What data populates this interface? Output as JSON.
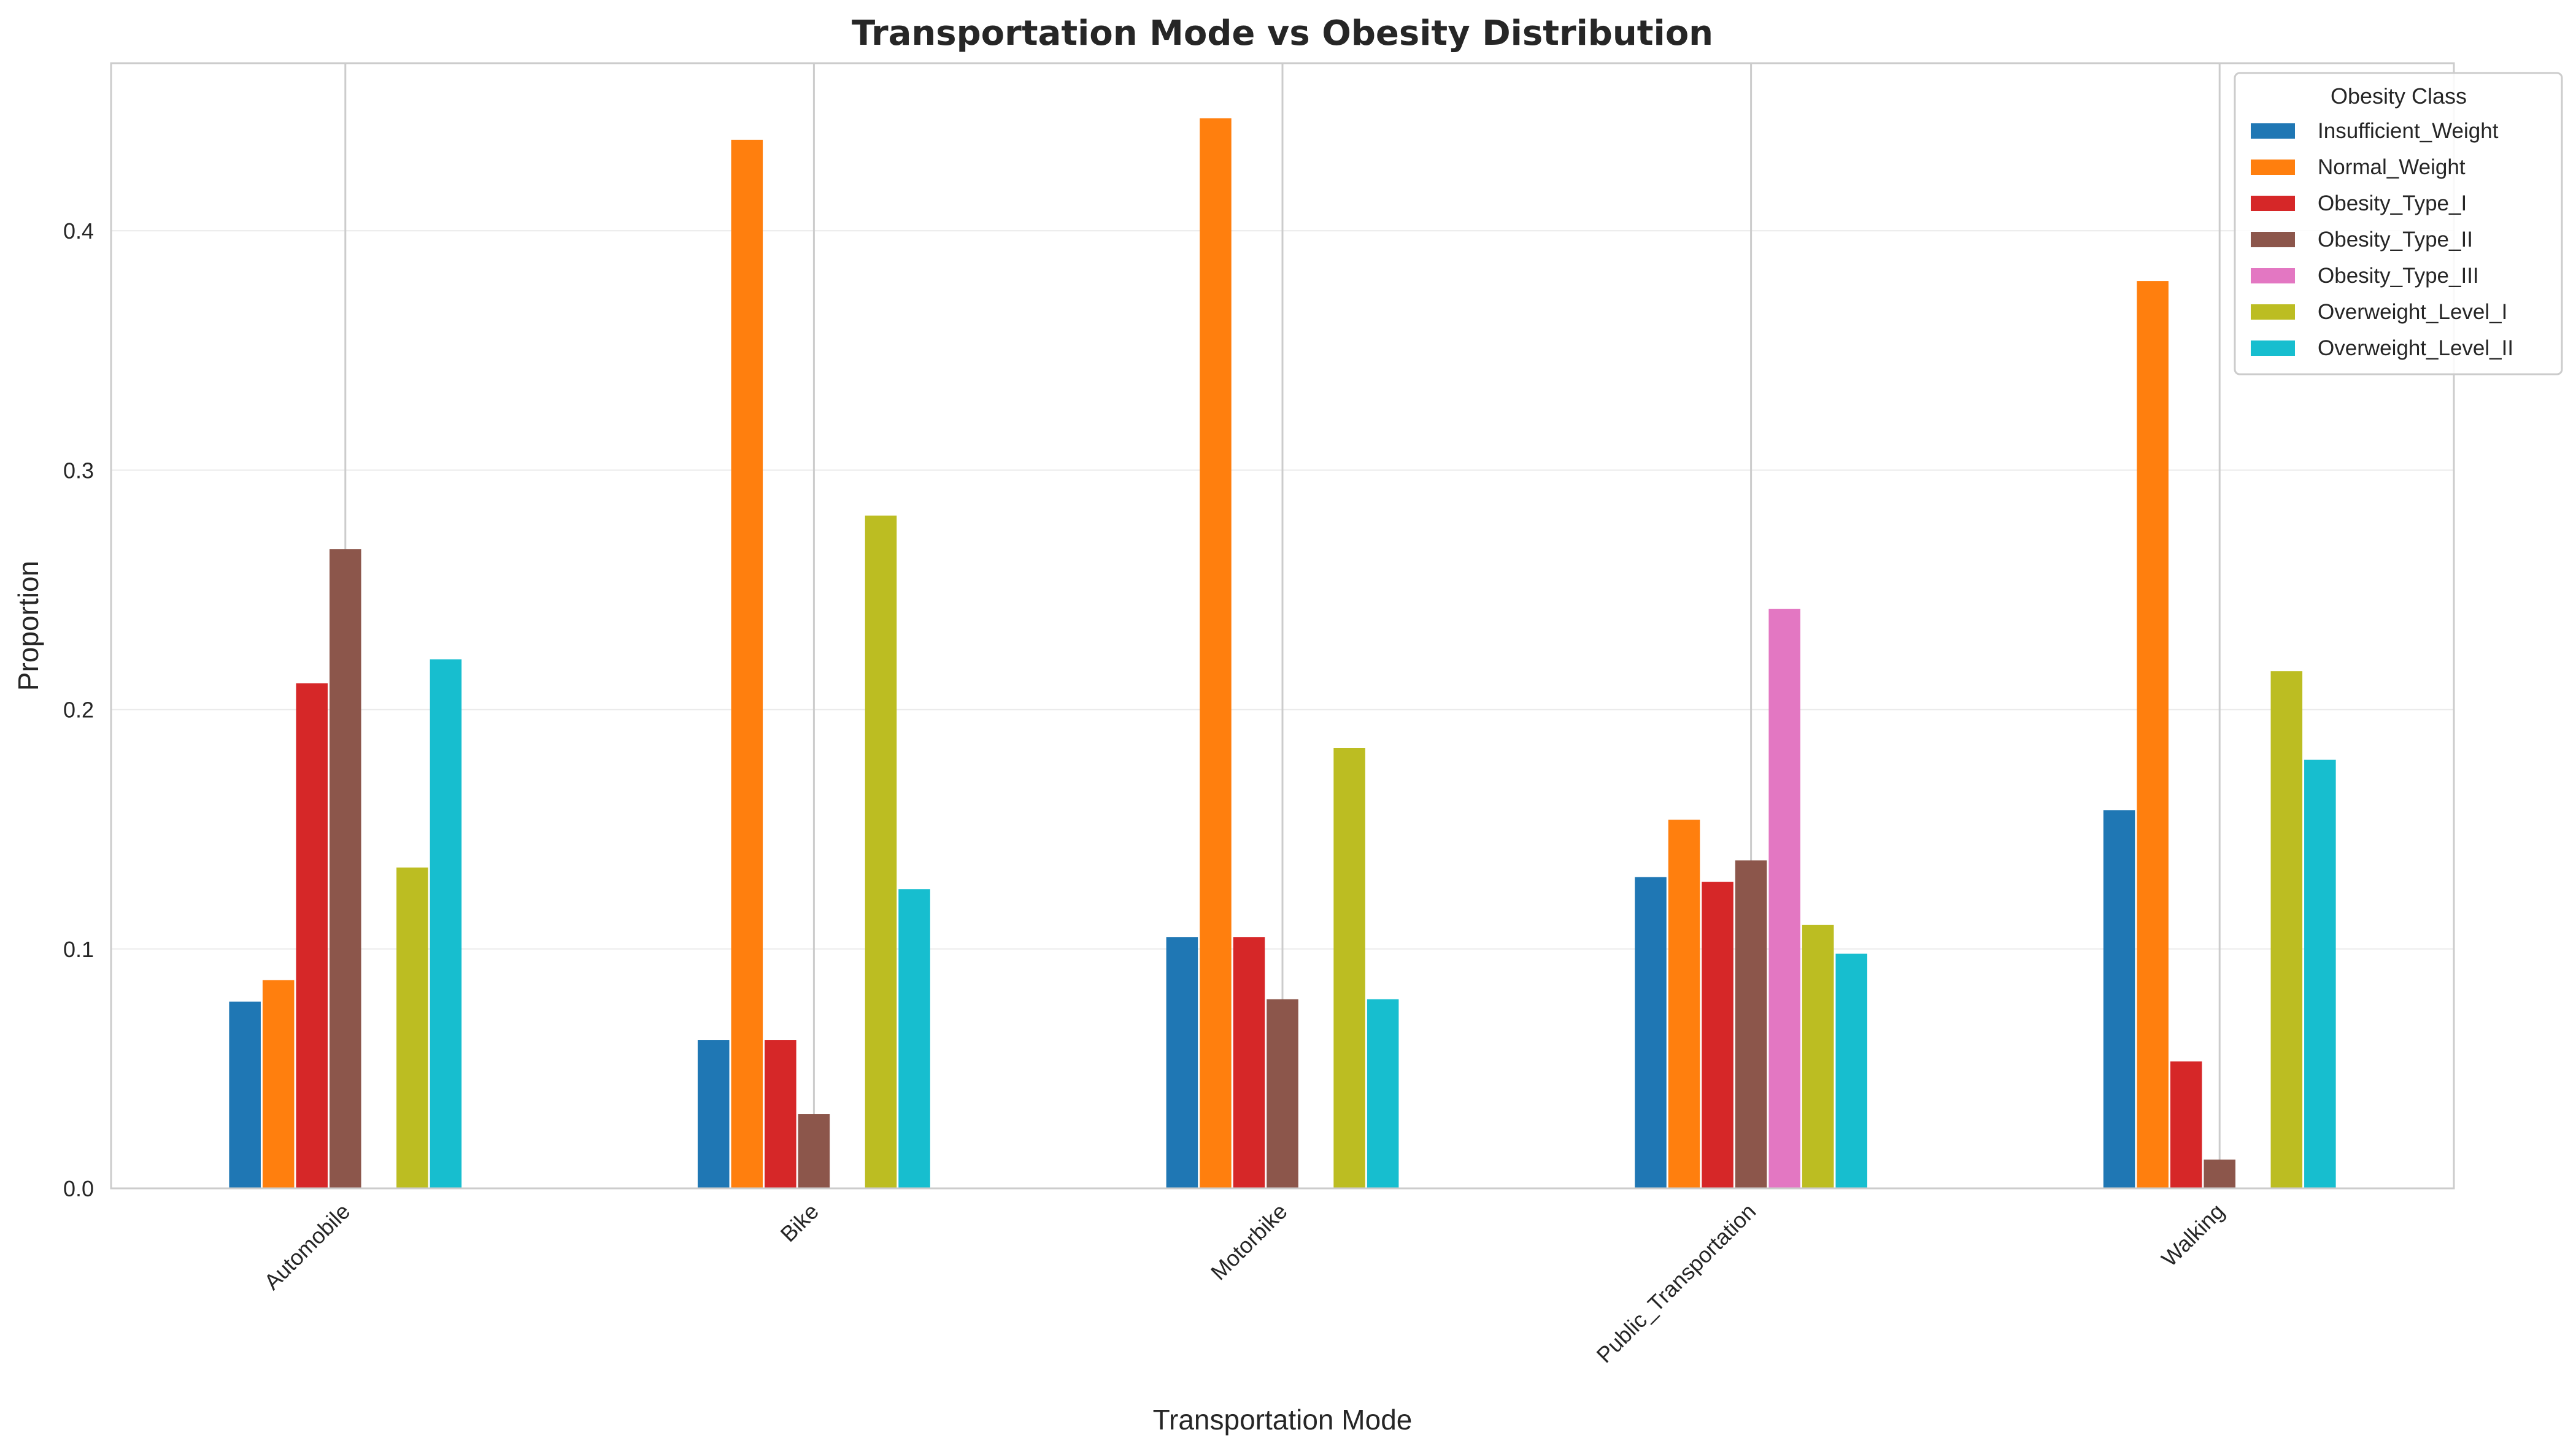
{
  "chart_data": {
    "type": "bar",
    "title": "Transportation Mode vs Obesity Distribution",
    "xlabel": "Transportation Mode",
    "ylabel": "Proportion",
    "categories": [
      "Automobile",
      "Bike",
      "Motorbike",
      "Public_Transportation",
      "Walking"
    ],
    "ylim": [
      0,
      0.47
    ],
    "yticks": [
      0.0,
      0.1,
      0.2,
      0.3,
      0.4
    ],
    "ytick_labels": [
      "0.0",
      "0.1",
      "0.2",
      "0.3",
      "0.4"
    ],
    "grid": "y-axis on, light",
    "legend": {
      "title": "Obesity Class",
      "placement": "top-right"
    },
    "series": [
      {
        "name": "Insufficient_Weight",
        "color": "#1f77b4",
        "values": [
          0.078,
          0.062,
          0.105,
          0.13,
          0.158
        ]
      },
      {
        "name": "Normal_Weight",
        "color": "#ff7f0e",
        "values": [
          0.087,
          0.438,
          0.447,
          0.154,
          0.379
        ]
      },
      {
        "name": "Obesity_Type_I",
        "color": "#d62728",
        "values": [
          0.211,
          0.062,
          0.105,
          0.128,
          0.053
        ]
      },
      {
        "name": "Obesity_Type_II",
        "color": "#8c564b",
        "values": [
          0.267,
          0.031,
          0.079,
          0.137,
          0.012
        ]
      },
      {
        "name": "Obesity_Type_III",
        "color": "#e377c2",
        "values": [
          0.0,
          0.0,
          0.0,
          0.242,
          0.0
        ]
      },
      {
        "name": "Overweight_Level_I",
        "color": "#bcbd22",
        "values": [
          0.134,
          0.281,
          0.184,
          0.11,
          0.216
        ]
      },
      {
        "name": "Overweight_Level_II",
        "color": "#17becf",
        "values": [
          0.221,
          0.125,
          0.079,
          0.098,
          0.179
        ]
      }
    ]
  }
}
